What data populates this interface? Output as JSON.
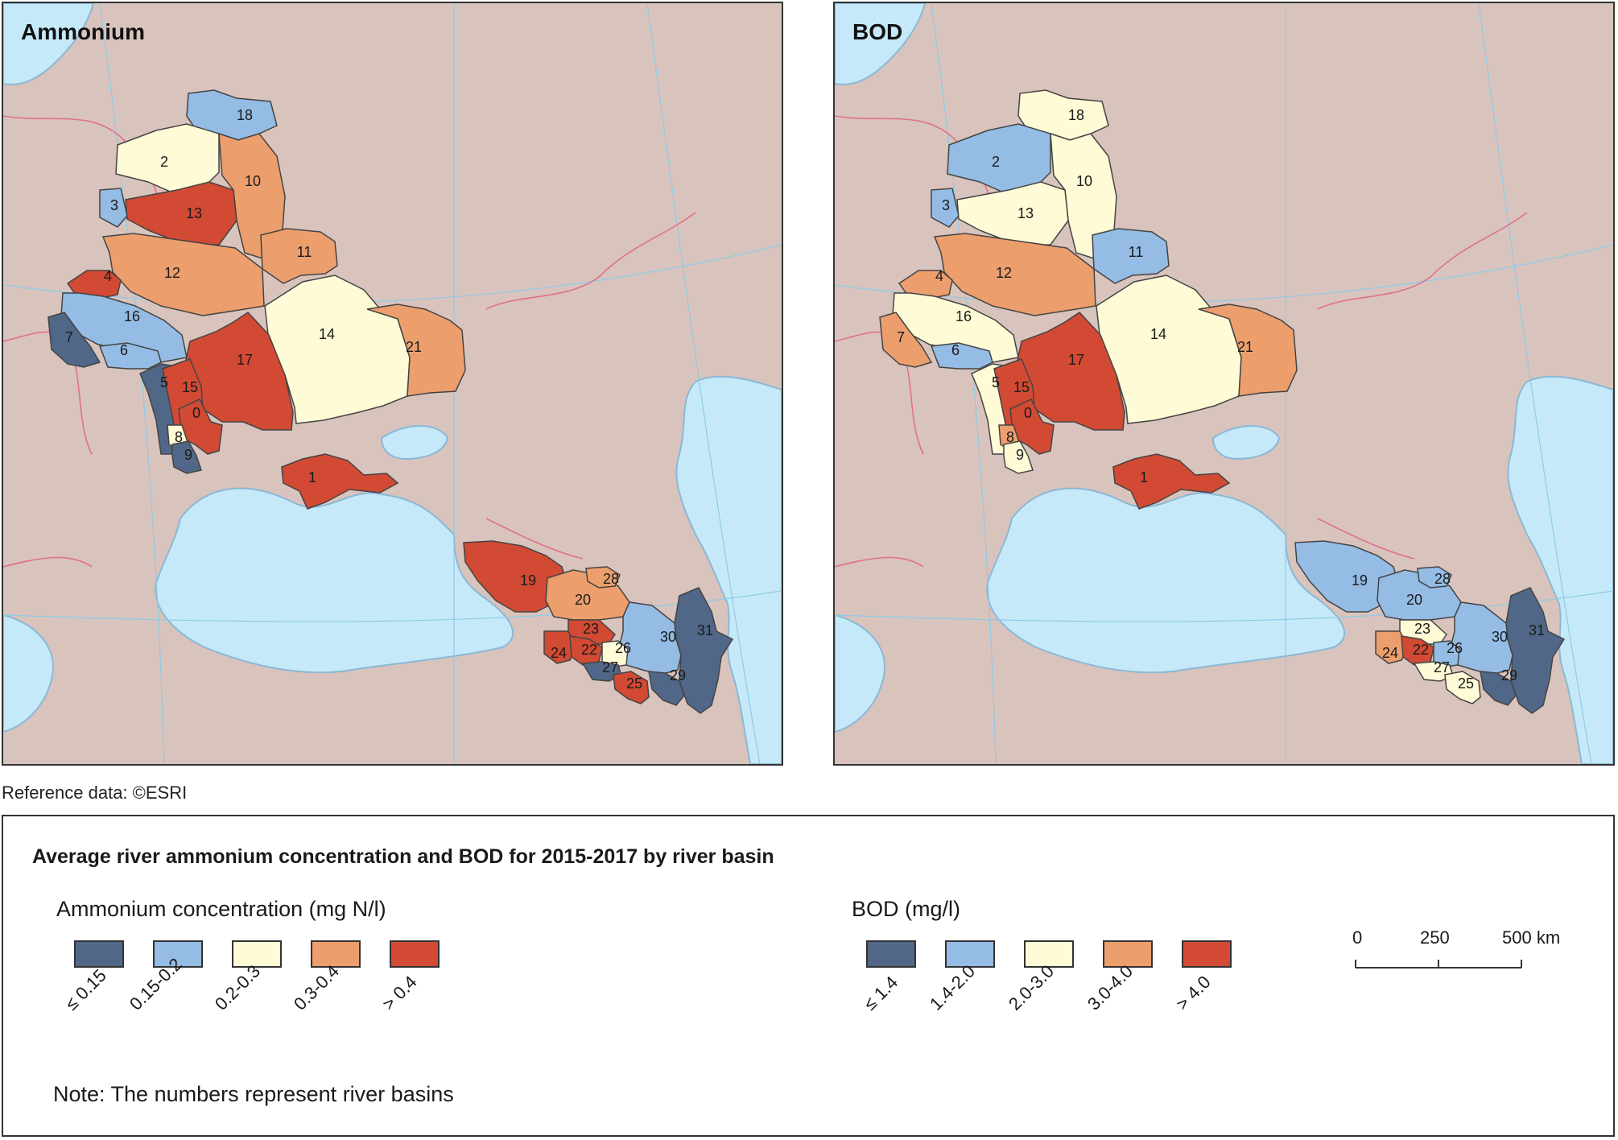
{
  "maps": [
    {
      "title": "Ammonium",
      "basins": [
        {
          "id": "18",
          "class": 1
        },
        {
          "id": "2",
          "class": 2
        },
        {
          "id": "10",
          "class": 3
        },
        {
          "id": "3",
          "class": 1
        },
        {
          "id": "13",
          "class": 4
        },
        {
          "id": "11",
          "class": 3
        },
        {
          "id": "12",
          "class": 3
        },
        {
          "id": "4",
          "class": 4
        },
        {
          "id": "16",
          "class": 1
        },
        {
          "id": "7",
          "class": 0
        },
        {
          "id": "6",
          "class": 1
        },
        {
          "id": "14",
          "class": 2
        },
        {
          "id": "21",
          "class": 3
        },
        {
          "id": "17",
          "class": 4
        },
        {
          "id": "5",
          "class": 0
        },
        {
          "id": "15",
          "class": 4
        },
        {
          "id": "0",
          "class": 4
        },
        {
          "id": "8",
          "class": 2
        },
        {
          "id": "9",
          "class": 0
        },
        {
          "id": "1",
          "class": 4
        },
        {
          "id": "19",
          "class": 4
        },
        {
          "id": "20",
          "class": 3
        },
        {
          "id": "28",
          "class": 3
        },
        {
          "id": "31",
          "class": 0
        },
        {
          "id": "30",
          "class": 1
        },
        {
          "id": "23",
          "class": 4
        },
        {
          "id": "24",
          "class": 4
        },
        {
          "id": "22",
          "class": 4
        },
        {
          "id": "26",
          "class": 2
        },
        {
          "id": "27",
          "class": 0
        },
        {
          "id": "25",
          "class": 4
        },
        {
          "id": "29",
          "class": 0
        }
      ]
    },
    {
      "title": "BOD",
      "basins": [
        {
          "id": "18",
          "class": 2
        },
        {
          "id": "2",
          "class": 1
        },
        {
          "id": "10",
          "class": 2
        },
        {
          "id": "3",
          "class": 1
        },
        {
          "id": "13",
          "class": 2
        },
        {
          "id": "11",
          "class": 1
        },
        {
          "id": "12",
          "class": 3
        },
        {
          "id": "4",
          "class": 3
        },
        {
          "id": "16",
          "class": 2
        },
        {
          "id": "7",
          "class": 3
        },
        {
          "id": "6",
          "class": 1
        },
        {
          "id": "14",
          "class": 2
        },
        {
          "id": "21",
          "class": 3
        },
        {
          "id": "17",
          "class": 4
        },
        {
          "id": "5",
          "class": 2
        },
        {
          "id": "15",
          "class": 4
        },
        {
          "id": "0",
          "class": 4
        },
        {
          "id": "8",
          "class": 3
        },
        {
          "id": "9",
          "class": 2
        },
        {
          "id": "1",
          "class": 4
        },
        {
          "id": "19",
          "class": 1
        },
        {
          "id": "20",
          "class": 1
        },
        {
          "id": "28",
          "class": 1
        },
        {
          "id": "31",
          "class": 0
        },
        {
          "id": "30",
          "class": 1
        },
        {
          "id": "23",
          "class": 2
        },
        {
          "id": "24",
          "class": 3
        },
        {
          "id": "22",
          "class": 4
        },
        {
          "id": "26",
          "class": 1
        },
        {
          "id": "27",
          "class": 2
        },
        {
          "id": "25",
          "class": 2
        },
        {
          "id": "29",
          "class": 0
        }
      ]
    }
  ],
  "colors": [
    "#506787",
    "#94bce4",
    "#fefbd6",
    "#ec9f6d",
    "#d24a33"
  ],
  "reference": "Reference data: ©ESRI",
  "legend": {
    "title": "Average river ammonium concentration and BOD for 2015-2017 by river basin",
    "ammonium": {
      "heading": "Ammonium concentration (mg N/l)",
      "classes": [
        "≤ 0.15",
        "0.15-0.2",
        "0.2-0.3",
        "0.3-0.4",
        "> 0.4"
      ]
    },
    "bod": {
      "heading": "BOD (mg/l)",
      "classes": [
        "≤ 1.4",
        "1.4-2.0",
        "2.0-3.0",
        "3.0-4.0",
        "> 4.0"
      ]
    },
    "note": "Note: The numbers represent river basins",
    "scale": {
      "ticks": [
        "0",
        "250",
        "500 km"
      ]
    }
  }
}
